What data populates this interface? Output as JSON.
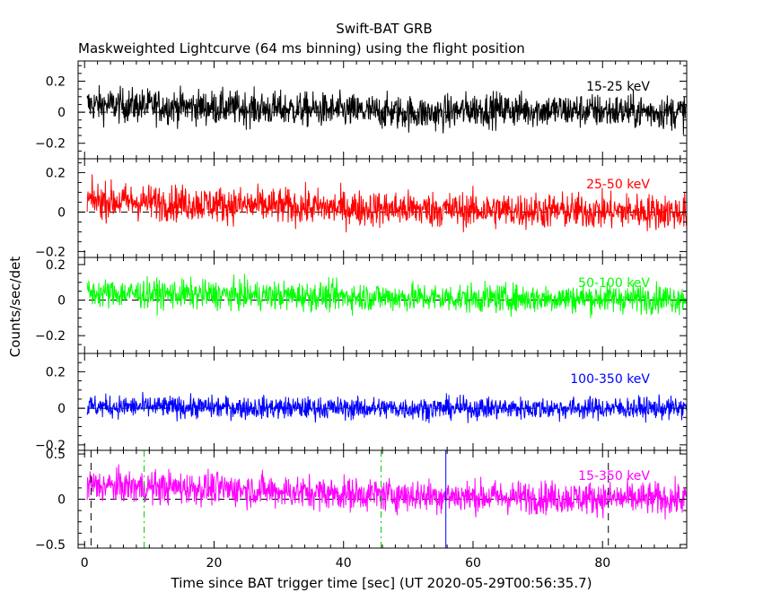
{
  "header": {
    "title": "Swift-BAT GRB",
    "subtitle": "Maskweighted Lightcurve (64 ms binning) using the flight position"
  },
  "chart_data": {
    "type": "line",
    "xlabel": "Time since BAT trigger time [sec] (UT 2020-05-29T00:56:35.7)",
    "ylabel": "Counts/sec/det",
    "xlim": [
      -1,
      93
    ],
    "x_ticks": [
      0,
      20,
      40,
      60,
      80
    ],
    "bin_width_s": 0.064,
    "panels": [
      {
        "name": "15-25 keV",
        "color": "#000000",
        "ylim": [
          -0.3,
          0.33
        ],
        "y_ticks": [
          -0.2,
          0,
          0.2
        ],
        "y_tick_labels": [
          "−0.2",
          "0",
          "0.2"
        ],
        "trend": [
          [
            0,
            0.05
          ],
          [
            20,
            0.03
          ],
          [
            40,
            0.01
          ],
          [
            55,
            -0.01
          ],
          [
            60,
            0.02
          ],
          [
            93,
            0.0
          ]
        ],
        "noise": 0.055
      },
      {
        "name": "25-50 keV",
        "color": "#ff0000",
        "ylim": [
          -0.23,
          0.27
        ],
        "y_ticks": [
          -0.2,
          0,
          0.2
        ],
        "y_tick_labels": [
          "−0.2",
          "0",
          "0.2"
        ],
        "trend": [
          [
            0,
            0.06
          ],
          [
            20,
            0.04
          ],
          [
            40,
            0.02
          ],
          [
            60,
            0.01
          ],
          [
            93,
            0.0
          ]
        ],
        "noise": 0.045
      },
      {
        "name": "50-100 keV",
        "color": "#00ff00",
        "ylim": [
          -0.3,
          0.24
        ],
        "y_ticks": [
          -0.2,
          0,
          0.2
        ],
        "y_tick_labels": [
          "−0.2",
          "0",
          "0.2"
        ],
        "trend": [
          [
            0,
            0.04
          ],
          [
            20,
            0.03
          ],
          [
            40,
            0.02
          ],
          [
            60,
            0.01
          ],
          [
            93,
            0.01
          ]
        ],
        "noise": 0.04
      },
      {
        "name": "100-350 keV",
        "color": "#0000ff",
        "ylim": [
          -0.23,
          0.3
        ],
        "y_ticks": [
          -0.2,
          0,
          0.2
        ],
        "y_tick_labels": [
          "−0.2",
          "0",
          "0.2"
        ],
        "trend": [
          [
            0,
            0.01
          ],
          [
            40,
            0.0
          ],
          [
            93,
            0.0
          ]
        ],
        "noise": 0.03
      },
      {
        "name": "15-350 keV",
        "color": "#ff00ff",
        "ylim": [
          -0.54,
          0.54
        ],
        "y_ticks": [
          -0.5,
          0,
          0.5
        ],
        "y_tick_labels": [
          "−0.5",
          "0",
          "0.5"
        ],
        "trend": [
          [
            0,
            0.15
          ],
          [
            20,
            0.12
          ],
          [
            40,
            0.06
          ],
          [
            60,
            0.03
          ],
          [
            93,
            0.0
          ]
        ],
        "noise": 0.09
      }
    ],
    "markers": [
      {
        "x": 1.0,
        "color": "#000000",
        "style": "dashed"
      },
      {
        "x": 80.9,
        "color": "#000000",
        "style": "dashed"
      },
      {
        "x": 9.2,
        "color": "#00cc00",
        "style": "dashdot"
      },
      {
        "x": 45.8,
        "color": "#00cc00",
        "style": "dashdot"
      },
      {
        "x": 55.8,
        "color": "#0000ff",
        "style": "solid"
      }
    ]
  }
}
